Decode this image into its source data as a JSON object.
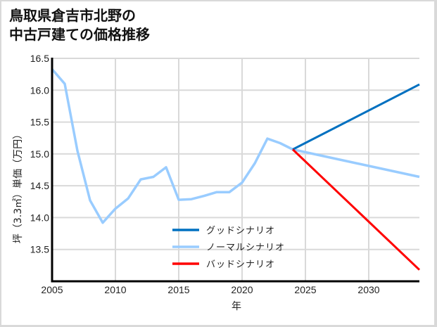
{
  "title": {
    "line1": "鳥取県倉吉市北野の",
    "line2": "中古戸建ての価格推移"
  },
  "colors": {
    "good": "#0070c0",
    "normal": "#99ccff",
    "bad": "#ff0000",
    "grid": "#d9d9d9",
    "axis": "#000000"
  },
  "chart_data": {
    "type": "line",
    "title": "鳥取県倉吉市北野の中古戸建ての価格推移",
    "xlabel": "年",
    "ylabel": "坪（3.3㎡）単価（万円）",
    "xlim": [
      2005,
      2034
    ],
    "ylim": [
      13.0,
      16.5
    ],
    "x_ticks": [
      2005,
      2010,
      2015,
      2020,
      2025,
      2030
    ],
    "y_ticks": [
      13.5,
      14.0,
      14.5,
      15.0,
      15.5,
      16.0,
      16.5
    ],
    "y_tick_labels": [
      "13.5",
      "14.0",
      "14.5",
      "15.0",
      "15.5",
      "16.0",
      "16.5"
    ],
    "grid": true,
    "legend_position": "lower center (inside plot)",
    "series": [
      {
        "name": "グッドシナリオ",
        "color": "#0070c0",
        "x": [
          2024,
          2034
        ],
        "values": [
          15.07,
          16.09
        ]
      },
      {
        "name": "ノーマルシナリオ",
        "color": "#99ccff",
        "x": [
          2005,
          2006,
          2007,
          2008,
          2009,
          2010,
          2011,
          2012,
          2013,
          2014,
          2015,
          2016,
          2017,
          2018,
          2019,
          2020,
          2021,
          2022,
          2023,
          2024,
          2034
        ],
        "values": [
          16.33,
          16.1,
          15.05,
          14.27,
          13.92,
          14.14,
          14.3,
          14.6,
          14.64,
          14.79,
          14.28,
          14.29,
          14.34,
          14.4,
          14.4,
          14.55,
          14.85,
          15.24,
          15.17,
          15.07,
          14.64
        ]
      },
      {
        "name": "バッドシナリオ",
        "color": "#ff0000",
        "x": [
          2024,
          2034
        ],
        "values": [
          15.07,
          13.18
        ]
      }
    ]
  },
  "legend": [
    {
      "label": "グッドシナリオ",
      "color": "#0070c0"
    },
    {
      "label": "ノーマルシナリオ",
      "color": "#99ccff"
    },
    {
      "label": "バッドシナリオ",
      "color": "#ff0000"
    }
  ]
}
